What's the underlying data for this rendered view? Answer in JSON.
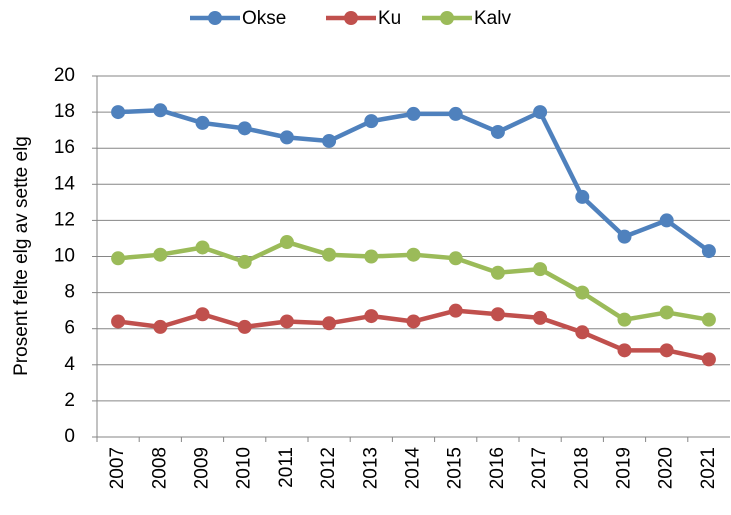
{
  "chart_data": {
    "type": "line",
    "ylabel": "Prosent felte elg av sette elg",
    "categories": [
      "2007",
      "2008",
      "2009",
      "2010",
      "2011",
      "2012",
      "2013",
      "2014",
      "2015",
      "2016",
      "2017",
      "2018",
      "2019",
      "2020",
      "2021"
    ],
    "series": [
      {
        "name": "Okse",
        "color": "#4f81bd",
        "values": [
          18.0,
          18.1,
          17.4,
          17.1,
          16.6,
          16.4,
          17.5,
          17.9,
          17.9,
          16.9,
          18.0,
          13.3,
          11.1,
          12.0,
          10.3
        ]
      },
      {
        "name": "Ku",
        "color": "#c0504d",
        "values": [
          6.4,
          6.1,
          6.8,
          6.1,
          6.4,
          6.3,
          6.7,
          6.4,
          7.0,
          6.8,
          6.6,
          5.8,
          4.8,
          4.8,
          4.3
        ]
      },
      {
        "name": "Kalv",
        "color": "#9bbb59",
        "values": [
          9.9,
          10.1,
          10.5,
          9.7,
          10.8,
          10.1,
          10.0,
          10.1,
          9.9,
          9.1,
          9.3,
          8.0,
          6.5,
          6.9,
          6.5
        ]
      }
    ],
    "ylim": [
      0,
      20
    ],
    "yticks": [
      0,
      2,
      4,
      6,
      8,
      10,
      12,
      14,
      16,
      18,
      20
    ],
    "grid": true,
    "legend": "top"
  }
}
